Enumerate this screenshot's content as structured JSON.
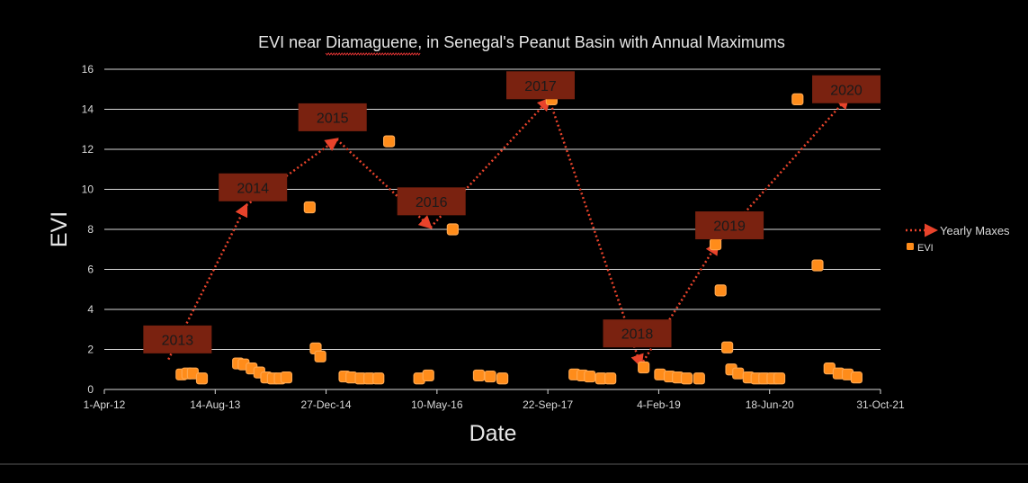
{
  "chart_data": {
    "type": "scatter",
    "title": "EVI near Diamaguene, in Senegal's Peanut Basin with Annual Maximums",
    "title_underlined_word": "Diamaguene",
    "xlabel": "Date",
    "ylabel": "EVI",
    "ylim": [
      0,
      16
    ],
    "yticks": [
      0,
      2,
      4,
      6,
      8,
      10,
      12,
      14,
      16
    ],
    "xlim": [
      "2012-04-01",
      "2021-10-31"
    ],
    "xticks": [
      {
        "date": "2012-04-01",
        "label": "1-Apr-12"
      },
      {
        "date": "2013-08-14",
        "label": "14-Aug-13"
      },
      {
        "date": "2014-12-27",
        "label": "27-Dec-14"
      },
      {
        "date": "2016-05-10",
        "label": "10-May-16"
      },
      {
        "date": "2017-09-22",
        "label": "22-Sep-17"
      },
      {
        "date": "2019-02-04",
        "label": "4-Feb-19"
      },
      {
        "date": "2020-06-18",
        "label": "18-Jun-20"
      },
      {
        "date": "2021-10-31",
        "label": "31-Oct-21"
      }
    ],
    "grid": "horizontal",
    "legend_position": "right",
    "series": [
      {
        "name": "Yearly Maxes",
        "style": "dotted-arrow",
        "color": "#e8432b",
        "points": [
          {
            "x": "2013-01-15",
            "y": 1.5
          },
          {
            "x": "2014-01-01",
            "y": 9.2
          },
          {
            "x": "2015-02-13",
            "y": 12.5
          },
          {
            "x": "2016-04-11",
            "y": 8.1
          },
          {
            "x": "2017-09-28",
            "y": 14.5
          },
          {
            "x": "2018-11-15",
            "y": 1.2
          },
          {
            "x": "2019-10-26",
            "y": 7.3
          },
          {
            "x": "2021-06-06",
            "y": 14.6
          }
        ]
      },
      {
        "name": "EVI",
        "style": "square-marker",
        "color": "#ff8c1a",
        "points": [
          {
            "x": "2013-03-15",
            "y": 0.75
          },
          {
            "x": "2013-04-10",
            "y": 0.8
          },
          {
            "x": "2013-05-05",
            "y": 0.8
          },
          {
            "x": "2013-06-15",
            "y": 0.55
          },
          {
            "x": "2013-11-25",
            "y": 1.3
          },
          {
            "x": "2013-12-20",
            "y": 1.25
          },
          {
            "x": "2014-01-25",
            "y": 1.05
          },
          {
            "x": "2014-03-01",
            "y": 0.85
          },
          {
            "x": "2014-04-01",
            "y": 0.6
          },
          {
            "x": "2014-05-01",
            "y": 0.55
          },
          {
            "x": "2014-06-01",
            "y": 0.55
          },
          {
            "x": "2014-07-01",
            "y": 0.6
          },
          {
            "x": "2014-10-14",
            "y": 9.1
          },
          {
            "x": "2014-11-10",
            "y": 2.05
          },
          {
            "x": "2014-12-01",
            "y": 1.65
          },
          {
            "x": "2015-03-20",
            "y": 0.65
          },
          {
            "x": "2015-04-20",
            "y": 0.6
          },
          {
            "x": "2015-06-01",
            "y": 0.55
          },
          {
            "x": "2015-07-10",
            "y": 0.55
          },
          {
            "x": "2015-08-20",
            "y": 0.55
          },
          {
            "x": "2015-10-07",
            "y": 12.4
          },
          {
            "x": "2016-02-20",
            "y": 0.55
          },
          {
            "x": "2016-04-01",
            "y": 0.7
          },
          {
            "x": "2016-07-20",
            "y": 8.0
          },
          {
            "x": "2016-11-15",
            "y": 0.7
          },
          {
            "x": "2017-01-05",
            "y": 0.65
          },
          {
            "x": "2017-03-01",
            "y": 0.55
          },
          {
            "x": "2017-10-09",
            "y": 14.5
          },
          {
            "x": "2018-01-20",
            "y": 0.75
          },
          {
            "x": "2018-02-25",
            "y": 0.7
          },
          {
            "x": "2018-03-30",
            "y": 0.65
          },
          {
            "x": "2018-05-20",
            "y": 0.55
          },
          {
            "x": "2018-07-01",
            "y": 0.55
          },
          {
            "x": "2018-11-28",
            "y": 1.1
          },
          {
            "x": "2019-02-10",
            "y": 0.75
          },
          {
            "x": "2019-03-25",
            "y": 0.65
          },
          {
            "x": "2019-05-01",
            "y": 0.6
          },
          {
            "x": "2019-06-10",
            "y": 0.55
          },
          {
            "x": "2019-08-05",
            "y": 0.55
          },
          {
            "x": "2019-10-18",
            "y": 7.25
          },
          {
            "x": "2019-11-10",
            "y": 4.95
          },
          {
            "x": "2019-12-10",
            "y": 2.1
          },
          {
            "x": "2019-12-28",
            "y": 1.0
          },
          {
            "x": "2020-01-28",
            "y": 0.8
          },
          {
            "x": "2020-03-15",
            "y": 0.6
          },
          {
            "x": "2020-04-20",
            "y": 0.55
          },
          {
            "x": "2020-05-25",
            "y": 0.55
          },
          {
            "x": "2020-07-01",
            "y": 0.55
          },
          {
            "x": "2020-08-01",
            "y": 0.55
          },
          {
            "x": "2020-10-22",
            "y": 14.5
          },
          {
            "x": "2021-01-20",
            "y": 6.2
          },
          {
            "x": "2021-03-15",
            "y": 1.05
          },
          {
            "x": "2021-04-25",
            "y": 0.8
          },
          {
            "x": "2021-06-05",
            "y": 0.75
          },
          {
            "x": "2021-07-15",
            "y": 0.6
          }
        ]
      }
    ],
    "annotations": [
      {
        "text": "2013",
        "x": "2013-02-25",
        "y": 2.5
      },
      {
        "text": "2014",
        "x": "2014-01-31",
        "y": 10.1
      },
      {
        "text": "2015",
        "x": "2015-01-25",
        "y": 13.6
      },
      {
        "text": "2016",
        "x": "2016-04-15",
        "y": 9.4
      },
      {
        "text": "2017",
        "x": "2017-08-20",
        "y": 15.2
      },
      {
        "text": "2018",
        "x": "2018-10-30",
        "y": 2.8
      },
      {
        "text": "2019",
        "x": "2019-12-20",
        "y": 8.2
      },
      {
        "text": "2020",
        "x": "2021-05-30",
        "y": 15.0
      }
    ],
    "colors": {
      "annotation_fill": "#7a2210",
      "annotation_text": "#1a1a1a",
      "grid": "#d9d9d9",
      "text": "#d9d9d9"
    }
  }
}
